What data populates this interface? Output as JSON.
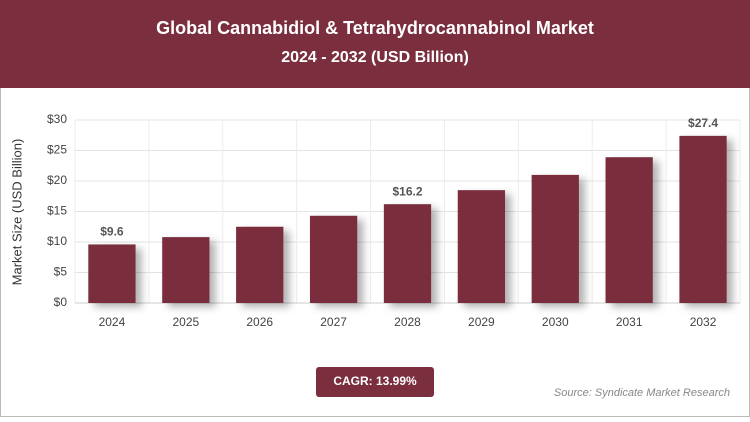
{
  "chart_data": {
    "type": "bar",
    "title": "Global Cannabidiol & Tetrahydrocannabinol Market",
    "subtitle": "2024 - 2032 (USD Billion)",
    "y_label": "Market Size (USD Billion)",
    "categories": [
      "2024",
      "2025",
      "2026",
      "2027",
      "2028",
      "2029",
      "2030",
      "2031",
      "2032"
    ],
    "values": [
      9.6,
      10.8,
      12.5,
      14.3,
      16.2,
      18.5,
      21.0,
      23.9,
      27.4
    ],
    "value_labels": [
      "$9.6",
      null,
      null,
      null,
      "$16.2",
      null,
      null,
      null,
      "$27.4"
    ],
    "color": "#7a2e3e",
    "ylim": [
      0,
      30
    ],
    "yticks": [
      {
        "value": 0,
        "label": "$0"
      },
      {
        "value": 5,
        "label": "$5"
      },
      {
        "value": 10,
        "label": "$10"
      },
      {
        "value": 15,
        "label": "$15"
      },
      {
        "value": 20,
        "label": "$20"
      },
      {
        "value": 25,
        "label": "$25"
      },
      {
        "value": 30,
        "label": "$30"
      }
    ],
    "grid": true,
    "cagr": "CAGR: 13.99%",
    "source": "Source: Syndicate Market Research"
  }
}
